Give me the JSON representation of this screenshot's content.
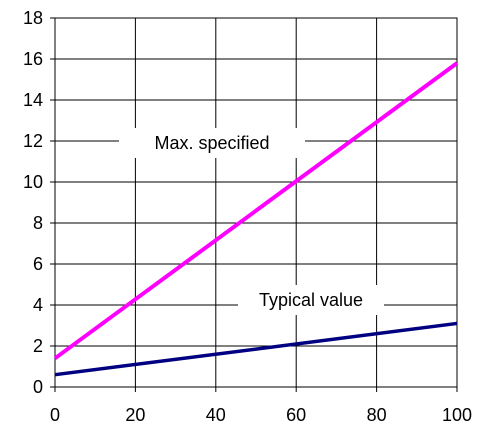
{
  "chart_data": {
    "type": "line",
    "title": "",
    "xlabel": "",
    "ylabel": "",
    "xlim": [
      0,
      100
    ],
    "ylim": [
      0,
      18
    ],
    "x_ticks": [
      0,
      20,
      40,
      60,
      80,
      100
    ],
    "y_ticks": [
      0,
      2,
      4,
      6,
      8,
      10,
      12,
      14,
      16,
      18
    ],
    "x_tick_labels": [
      "0",
      "20",
      "40",
      "60",
      "80",
      "100"
    ],
    "y_tick_labels": [
      "0",
      "2",
      "4",
      "6",
      "8",
      "10",
      "12",
      "14",
      "16",
      "18"
    ],
    "grid": true,
    "series": [
      {
        "name": "Max. specified",
        "color": "#ff00ff",
        "x": [
          0,
          100
        ],
        "y": [
          1.4,
          15.8
        ]
      },
      {
        "name": "Typical value",
        "color": "#000080",
        "x": [
          0,
          100
        ],
        "y": [
          0.6,
          3.1
        ]
      }
    ],
    "annotations": [
      {
        "text": "Max. specified",
        "series": 0
      },
      {
        "text": "Typical value",
        "series": 1
      }
    ]
  }
}
